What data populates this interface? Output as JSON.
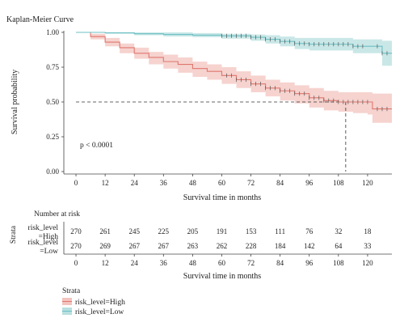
{
  "chart_data": {
    "type": "line",
    "title": "Kaplan-Meier Curve",
    "xlabel": "Survival time in months",
    "ylabel": "Survival probability",
    "xlim": [
      -5,
      130
    ],
    "ylim": [
      0,
      1
    ],
    "x_ticks": [
      0,
      12,
      24,
      36,
      48,
      60,
      72,
      84,
      96,
      108,
      120
    ],
    "y_ticks": [
      0.0,
      0.25,
      0.5,
      0.75,
      1.0
    ],
    "y_tick_labels": [
      "0.00",
      "0.25",
      "0.50",
      "0.75",
      "1.00"
    ],
    "annotation": "p < 0.0001",
    "median_survival": {
      "y": 0.5,
      "x": 111
    },
    "series": [
      {
        "name": "risk_level=High",
        "color": "#e0776f",
        "band_color": "#f3c4bf",
        "x": [
          0,
          6,
          12,
          18,
          24,
          30,
          36,
          42,
          48,
          54,
          60,
          66,
          72,
          78,
          84,
          90,
          96,
          102,
          108,
          114,
          120,
          122,
          126,
          130
        ],
        "y": [
          1.0,
          0.97,
          0.93,
          0.89,
          0.85,
          0.82,
          0.79,
          0.77,
          0.74,
          0.72,
          0.69,
          0.66,
          0.63,
          0.6,
          0.58,
          0.56,
          0.53,
          0.51,
          0.5,
          0.5,
          0.5,
          0.45,
          0.45,
          0.45
        ],
        "lower": [
          1.0,
          0.95,
          0.9,
          0.85,
          0.81,
          0.77,
          0.74,
          0.71,
          0.68,
          0.66,
          0.63,
          0.6,
          0.57,
          0.54,
          0.51,
          0.49,
          0.46,
          0.44,
          0.43,
          0.42,
          0.41,
          0.35,
          0.35,
          0.35
        ],
        "upper": [
          1.0,
          0.99,
          0.96,
          0.92,
          0.89,
          0.86,
          0.84,
          0.82,
          0.79,
          0.77,
          0.75,
          0.72,
          0.69,
          0.66,
          0.64,
          0.62,
          0.6,
          0.58,
          0.57,
          0.57,
          0.57,
          0.56,
          0.56,
          0.56
        ],
        "censor_x": [
          62,
          64,
          66,
          68,
          70,
          72,
          74,
          76,
          78,
          80,
          82,
          84,
          86,
          88,
          90,
          92,
          94,
          96,
          98,
          100,
          102,
          104,
          106,
          108,
          110,
          112,
          114,
          116,
          118,
          120,
          124,
          126,
          128
        ]
      },
      {
        "name": "risk_level=Low",
        "color": "#6cc0c4",
        "band_color": "#b8dfdf",
        "x": [
          0,
          12,
          24,
          36,
          48,
          60,
          72,
          78,
          84,
          90,
          96,
          102,
          108,
          114,
          120,
          126,
          130
        ],
        "y": [
          1.0,
          0.997,
          0.99,
          0.985,
          0.98,
          0.975,
          0.965,
          0.95,
          0.935,
          0.92,
          0.915,
          0.915,
          0.915,
          0.9,
          0.9,
          0.85,
          0.85
        ],
        "lower": [
          1.0,
          0.99,
          0.98,
          0.97,
          0.965,
          0.955,
          0.94,
          0.92,
          0.9,
          0.88,
          0.87,
          0.87,
          0.87,
          0.85,
          0.85,
          0.76,
          0.76
        ],
        "upper": [
          1.0,
          1.0,
          1.0,
          1.0,
          0.995,
          0.99,
          0.985,
          0.98,
          0.97,
          0.96,
          0.96,
          0.96,
          0.96,
          0.95,
          0.95,
          0.94,
          0.94
        ],
        "censor_x": [
          60,
          62,
          64,
          66,
          68,
          70,
          72,
          74,
          76,
          78,
          80,
          82,
          84,
          86,
          88,
          90,
          92,
          94,
          96,
          98,
          100,
          102,
          104,
          106,
          108,
          110,
          112,
          114,
          116,
          118,
          124,
          126,
          128
        ]
      }
    ]
  },
  "risk_table": {
    "title": "Number at risk",
    "strata_label": "Strata",
    "xlabel": "Survival time in months",
    "rows": [
      {
        "label_line1": "risk_level",
        "label_line2": "=High",
        "counts": [
          270,
          261,
          245,
          225,
          205,
          191,
          153,
          111,
          76,
          32,
          18
        ]
      },
      {
        "label_line1": "risk_level",
        "label_line2": "=Low",
        "counts": [
          270,
          269,
          267,
          267,
          263,
          262,
          228,
          184,
          142,
          64,
          33
        ]
      }
    ]
  },
  "legend": {
    "title": "Strata",
    "items": [
      "risk_level=High",
      "risk_level=Low"
    ]
  }
}
